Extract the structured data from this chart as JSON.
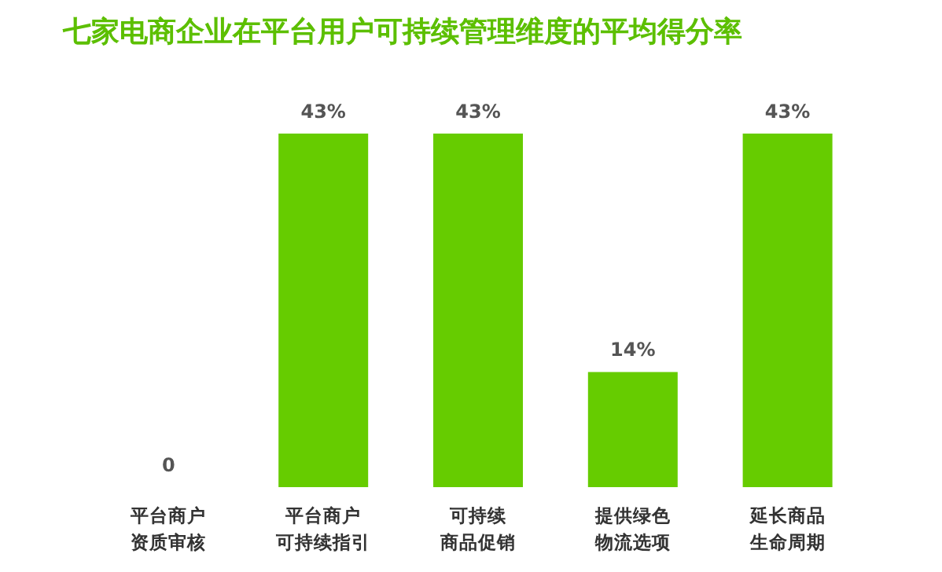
{
  "chart_data": {
    "type": "bar",
    "title": "七家电商企业在平台用户可持续管理维度的平均得分率",
    "categories": [
      "平台商户资质审核",
      "平台商户可持续指引",
      "可持续商品促销",
      "提供绿色物流选项",
      "延长商品生命周期"
    ],
    "values": [
      0,
      43,
      43,
      14,
      43
    ],
    "value_labels": [
      "0",
      "43%",
      "43%",
      "14%",
      "43%"
    ],
    "color": "#66cc00"
  }
}
